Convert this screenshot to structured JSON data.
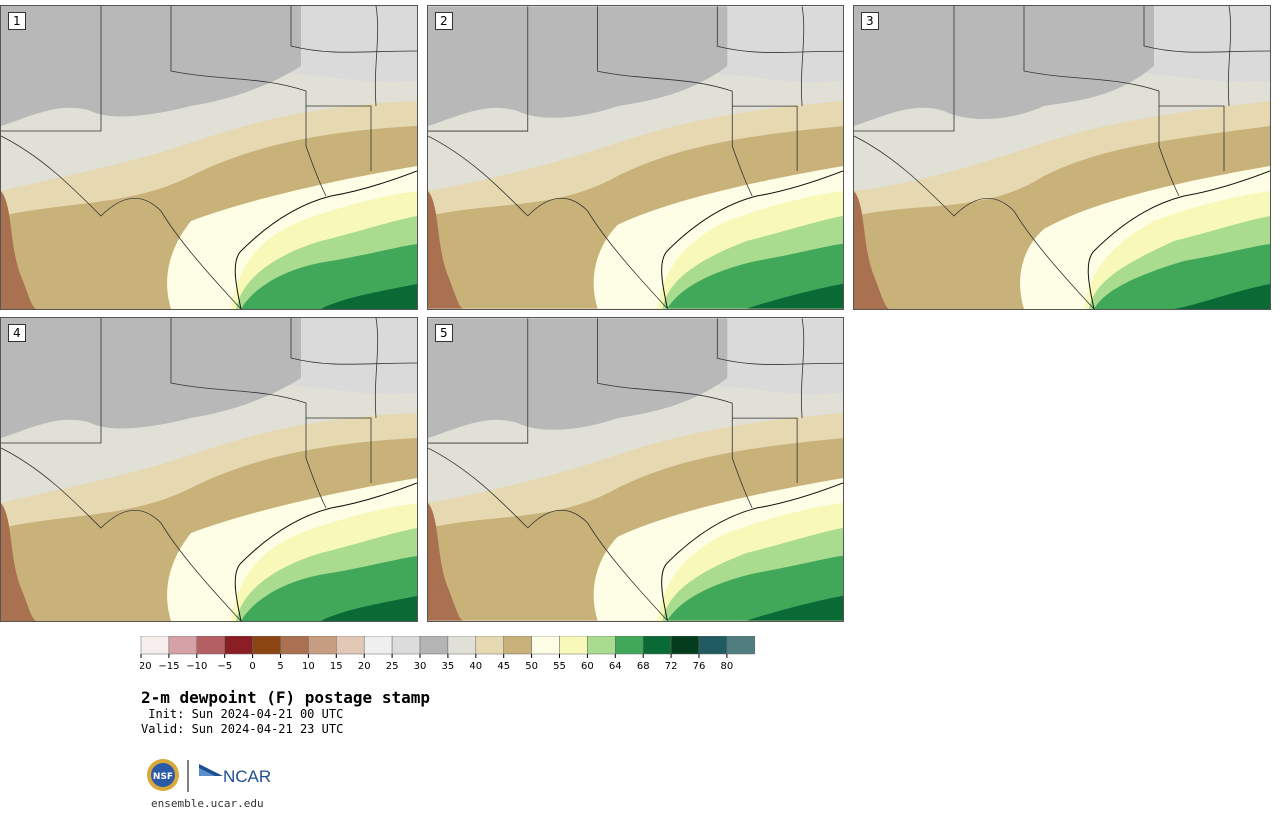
{
  "title": "2-m dewpoint (F) postage stamp",
  "init_line": " Init: Sun 2024-04-21 00 UTC",
  "valid_line": "Valid: Sun 2024-04-21 23 UTC",
  "site": "ensemble.ucar.edu",
  "logos": {
    "nsf_text": "NSF",
    "ncar_text": "NCAR"
  },
  "members": [
    "1",
    "2",
    "3",
    "4",
    "5"
  ],
  "colorbar": {
    "ticks": [
      "-20",
      "-15",
      "-10",
      "-5",
      "0",
      "5",
      "10",
      "15",
      "20",
      "25",
      "30",
      "35",
      "40",
      "45",
      "50",
      "55",
      "60",
      "64",
      "68",
      "72",
      "76",
      "80"
    ],
    "colors": [
      "#f6eeec",
      "#d5a1a6",
      "#b45f63",
      "#8b1e24",
      "#8a4513",
      "#a9714f",
      "#c79d82",
      "#e3c8b6",
      "#efefef",
      "#dcdcdc",
      "#b4b4b4",
      "#e0e0d6",
      "#e6d8b0",
      "#c8b27a",
      "#fefee6",
      "#f8f9b8",
      "#a9dc8e",
      "#41a85a",
      "#0a6a35",
      "#043d1e",
      "#1f5b61",
      "#4f7d80"
    ]
  },
  "map_colors": {
    "gray": "#b8b8b8",
    "lightgray": "#dadada",
    "pale": "#e0e0d6",
    "tan": "#e6d8b0",
    "brown": "#c8b27a",
    "cream": "#fefee6",
    "yellow": "#f8f9b8",
    "lightgreen": "#a9dc8e",
    "green": "#41a85a",
    "darkgreen": "#0a6a35",
    "rust": "#a9714f"
  }
}
